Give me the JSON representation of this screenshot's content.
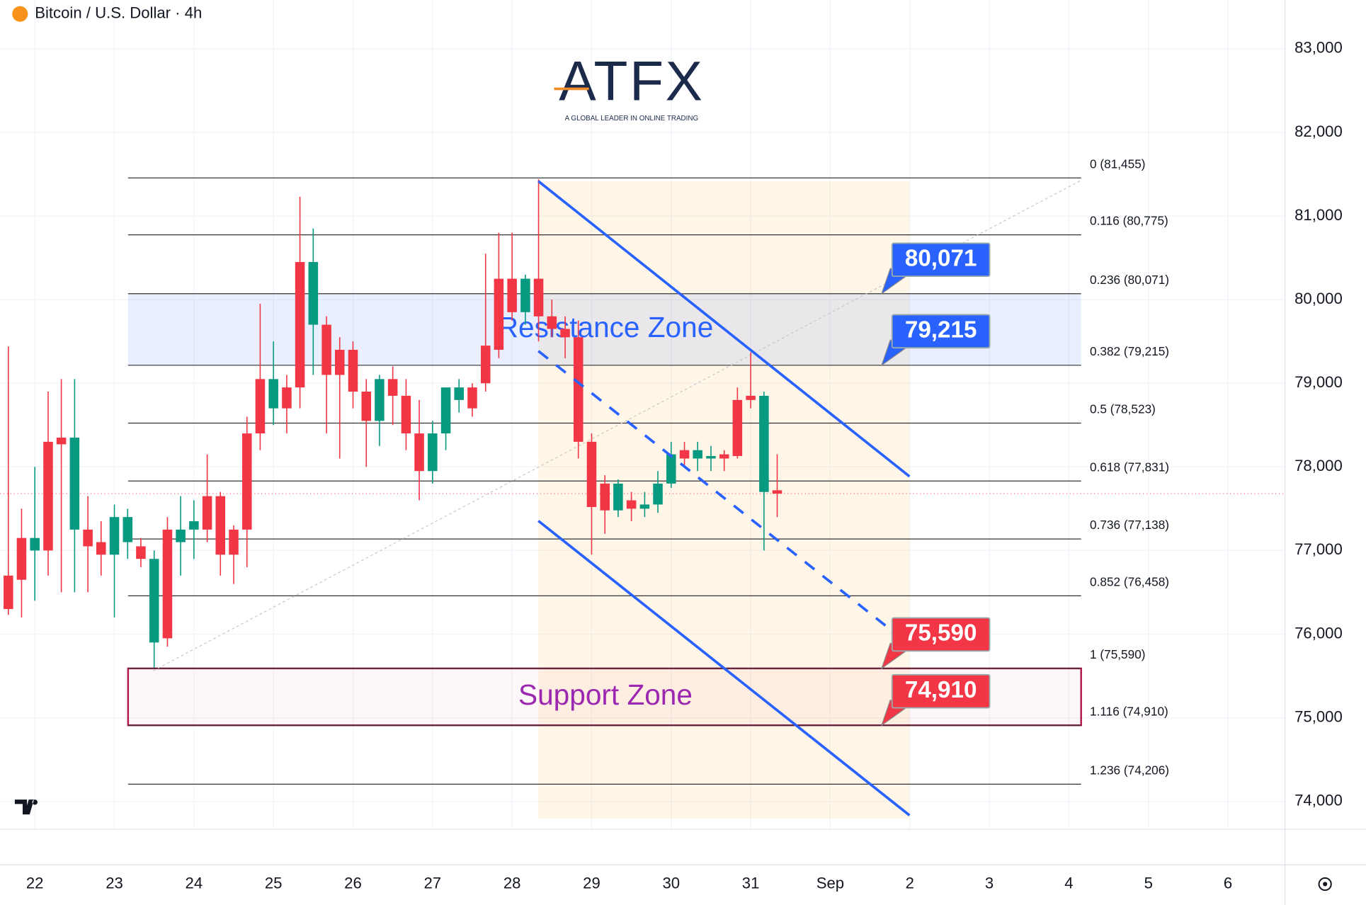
{
  "logo": {
    "name": "ATFX",
    "tagline": "A GLOBAL LEADER IN ONLINE TRADING"
  },
  "chart_data": {
    "type": "candlestick",
    "title": "Bitcoin / U.S. Dollar · 4h",
    "up_color": "#089981",
    "down_color": "#f23645",
    "x": [
      21.667,
      21.833,
      22,
      22.167,
      22.333,
      22.5,
      22.667,
      22.833,
      23,
      23.167,
      23.333,
      23.5,
      23.667,
      23.833,
      24,
      24.167,
      24.333,
      24.5,
      24.667,
      24.833,
      25,
      25.167,
      25.333,
      25.5,
      25.667,
      25.833,
      26,
      26.167,
      26.333,
      26.5,
      26.667,
      26.833,
      27,
      27.167,
      27.333,
      27.5,
      27.667,
      27.833,
      28,
      28.167,
      28.333,
      28.5,
      28.667,
      28.833,
      29,
      29.167,
      29.333,
      29.5,
      29.667,
      29.833,
      30,
      30.167,
      30.333,
      30.5,
      30.667,
      30.833,
      31,
      31.167,
      31.333
    ],
    "open": [
      76700,
      77150,
      77000,
      78300,
      78350,
      77250,
      77250,
      77100,
      76950,
      77100,
      77050,
      75900,
      77250,
      77100,
      77250,
      77650,
      77650,
      77250,
      78400,
      79050,
      78700,
      78950,
      80450,
      79700,
      79700,
      79400,
      79400,
      78900,
      78550,
      79050,
      78850,
      78400,
      77950,
      78400,
      78800,
      78950,
      79450,
      80250,
      80250,
      79850,
      80250,
      79800,
      79650,
      79550,
      78300,
      77800,
      77480,
      77600,
      77500,
      77550,
      77800,
      78200,
      78100,
      78100,
      78150,
      78800,
      78850,
      77700,
      77720
    ],
    "high": [
      79440,
      77500,
      78000,
      78900,
      79050,
      79050,
      77650,
      77350,
      77550,
      77500,
      77150,
      77000,
      77400,
      77650,
      77600,
      78150,
      77700,
      77300,
      78600,
      79950,
      79500,
      79100,
      81230,
      80850,
      79800,
      79550,
      79500,
      79050,
      79100,
      79200,
      79050,
      78800,
      78550,
      78950,
      79050,
      79000,
      80550,
      80800,
      80800,
      80300,
      81440,
      80000,
      79800,
      79750,
      78400,
      77900,
      77850,
      77700,
      77700,
      77950,
      78300,
      78300,
      78300,
      78250,
      78200,
      78950,
      79370,
      78900,
      78150
    ],
    "low": [
      76230,
      76200,
      76400,
      76700,
      76500,
      76500,
      76500,
      76700,
      76200,
      76900,
      76800,
      75600,
      75850,
      76700,
      76900,
      77100,
      76700,
      76600,
      76800,
      78200,
      78500,
      78400,
      78700,
      79100,
      78400,
      78100,
      78700,
      78000,
      78250,
      78500,
      78200,
      77600,
      77800,
      78200,
      78650,
      78600,
      78900,
      79300,
      79750,
      79700,
      79500,
      79550,
      79300,
      78100,
      76950,
      77200,
      77400,
      77350,
      77400,
      77450,
      77750,
      78000,
      77950,
      77950,
      77950,
      78100,
      78700,
      77000,
      77400
    ],
    "close": [
      76300,
      76650,
      77150,
      77000,
      78270,
      78350,
      77050,
      76950,
      77400,
      77400,
      76900,
      76900,
      75950,
      77250,
      77350,
      77250,
      76950,
      76950,
      77250,
      78400,
      79050,
      78700,
      78950,
      80450,
      79100,
      79100,
      78900,
      78550,
      79050,
      78850,
      78400,
      77950,
      78400,
      78950,
      78950,
      78700,
      79000,
      79400,
      79850,
      80250,
      79800,
      79650,
      79550,
      78300,
      77520,
      77480,
      77800,
      77500,
      77550,
      77800,
      78150,
      78100,
      78200,
      78130,
      78100,
      78130,
      78800,
      78850,
      77680
    ],
    "xlim": [
      21.562,
      37.717
    ],
    "xticks": [
      22,
      23,
      24,
      25,
      26,
      27,
      28,
      29,
      30,
      31,
      {
        "value": 32,
        "label": "Sep"
      },
      {
        "value": 33,
        "label": "2"
      },
      {
        "value": 34,
        "label": "3"
      },
      {
        "value": 35,
        "label": "4"
      },
      {
        "value": 36,
        "label": "5"
      },
      {
        "value": 37,
        "label": "6"
      }
    ],
    "ylim": [
      73667,
      83583
    ],
    "yticks": [
      {
        "value": 74000,
        "label": "74,000"
      },
      {
        "value": 75000,
        "label": "75,000"
      },
      {
        "value": 76000,
        "label": "76,000"
      },
      {
        "value": 77000,
        "label": "77,000"
      },
      {
        "value": 78000,
        "label": "78,000"
      },
      {
        "value": 79000,
        "label": "79,000"
      },
      {
        "value": 80000,
        "label": "80,000"
      },
      {
        "value": 81000,
        "label": "81,000"
      },
      {
        "value": 82000,
        "label": "82,000"
      },
      {
        "value": 83000,
        "label": "83,000"
      }
    ],
    "grid": true,
    "fib_levels": [
      {
        "value": 81455,
        "label": "0 (81,455)"
      },
      {
        "value": 80775,
        "label": "0.116 (80,775)"
      },
      {
        "value": 80071,
        "label": "0.236 (80,071)"
      },
      {
        "value": 79215,
        "label": "0.382 (79,215)"
      },
      {
        "value": 78523,
        "label": "0.5 (78,523)"
      },
      {
        "value": 77831,
        "label": "0.618 (77,831)"
      },
      {
        "value": 77138,
        "label": "0.736 (77,138)"
      },
      {
        "value": 76458,
        "label": "0.852 (76,458)"
      },
      {
        "value": 75590,
        "label": "1 (75,590)"
      },
      {
        "value": 74910,
        "label": "1.116 (74,910)"
      },
      {
        "value": 74206,
        "label": "1.236 (74,206)"
      }
    ],
    "zones": [
      {
        "name": "Resistance Zone",
        "low": 79215,
        "high": 80071,
        "color": "#2962ff"
      },
      {
        "name": "Support Zone",
        "low": 74910,
        "high": 75590,
        "color": "#9c27b0"
      }
    ],
    "price_tags": [
      {
        "value": 80071,
        "label": "80,071",
        "color": "#2962ff"
      },
      {
        "value": 79215,
        "label": "79,215",
        "color": "#2962ff"
      },
      {
        "value": 75590,
        "label": "75,590",
        "color": "#f23645"
      },
      {
        "value": 74910,
        "label": "74,910",
        "color": "#f23645"
      }
    ]
  }
}
